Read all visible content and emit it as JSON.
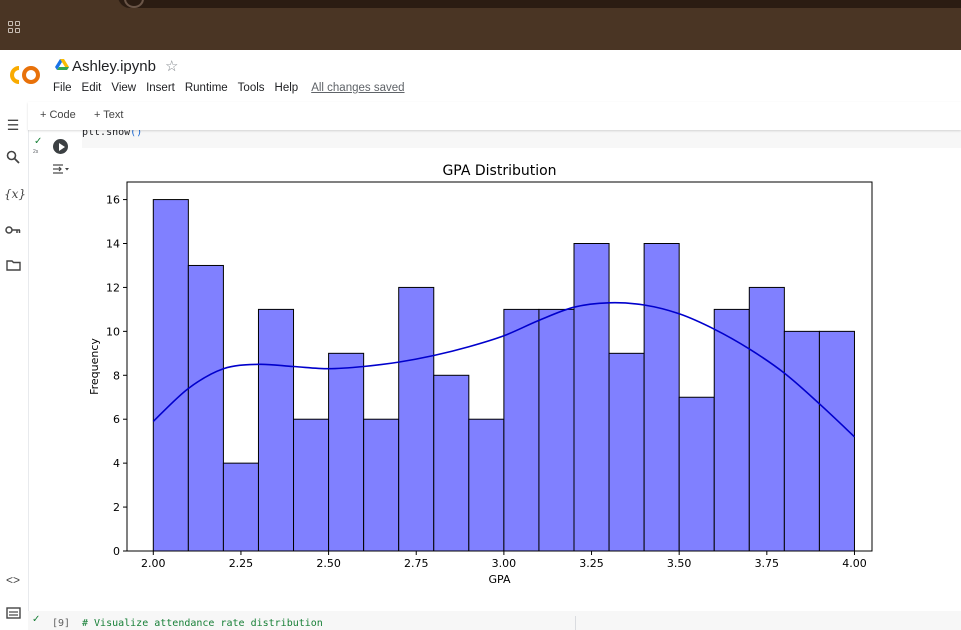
{
  "browser": {
    "apps_icon": "apps-grid-icon"
  },
  "header": {
    "logo": "colab-logo",
    "notebook_title": "Ashley.ipynb",
    "star_icon": "star-icon",
    "menu": [
      "File",
      "Edit",
      "View",
      "Insert",
      "Runtime",
      "Tools",
      "Help"
    ],
    "save_status": "All changes saved"
  },
  "sidebar": {
    "items": [
      "toc-icon",
      "search-icon",
      "variables-icon",
      "key-icon",
      "folder-icon",
      "code-snippets-icon",
      "terminal-icon"
    ],
    "variables_glyph": "{x}"
  },
  "toolbar": {
    "add_code": "+ Code",
    "add_text": "+ Text"
  },
  "cell": {
    "code": "plt.show",
    "code_parens": "()",
    "exec_time": "2s"
  },
  "next_cell": {
    "exec_count": "[9]",
    "code": "# Visualize attendance rate distribution"
  },
  "chart_data": {
    "type": "bar",
    "title": "GPA Distribution",
    "xlabel": "GPA",
    "ylabel": "Frequency",
    "bin_edges": [
      2.0,
      2.1,
      2.2,
      2.3,
      2.4,
      2.5,
      2.6,
      2.7,
      2.8,
      2.9,
      3.0,
      3.1,
      3.2,
      3.3,
      3.4,
      3.5,
      3.6,
      3.7,
      3.8,
      3.9,
      4.0
    ],
    "values": [
      16,
      13,
      4,
      11,
      6,
      9,
      6,
      12,
      8,
      6,
      11,
      11,
      14,
      9,
      14,
      7,
      11,
      12,
      10,
      10
    ],
    "kde": {
      "x": [
        2.0,
        2.1,
        2.2,
        2.3,
        2.4,
        2.5,
        2.6,
        2.7,
        2.8,
        2.9,
        3.0,
        3.1,
        3.2,
        3.3,
        3.4,
        3.5,
        3.6,
        3.7,
        3.8,
        3.9,
        4.0
      ],
      "y": [
        5.9,
        7.4,
        8.3,
        8.5,
        8.4,
        8.3,
        8.4,
        8.6,
        8.9,
        9.3,
        9.8,
        10.5,
        11.1,
        11.3,
        11.2,
        10.8,
        10.1,
        9.2,
        8.1,
        6.7,
        5.2
      ]
    },
    "xticks": [
      "2.00",
      "2.25",
      "2.50",
      "2.75",
      "3.00",
      "3.25",
      "3.50",
      "3.75",
      "4.00"
    ],
    "yticks": [
      "0",
      "2",
      "4",
      "6",
      "8",
      "10",
      "12",
      "14",
      "16"
    ],
    "xlim": [
      1.925,
      4.05
    ],
    "ylim": [
      0,
      16.8
    ],
    "bar_color": "#8080ff",
    "kde_color": "#0000cc",
    "grid": false
  }
}
